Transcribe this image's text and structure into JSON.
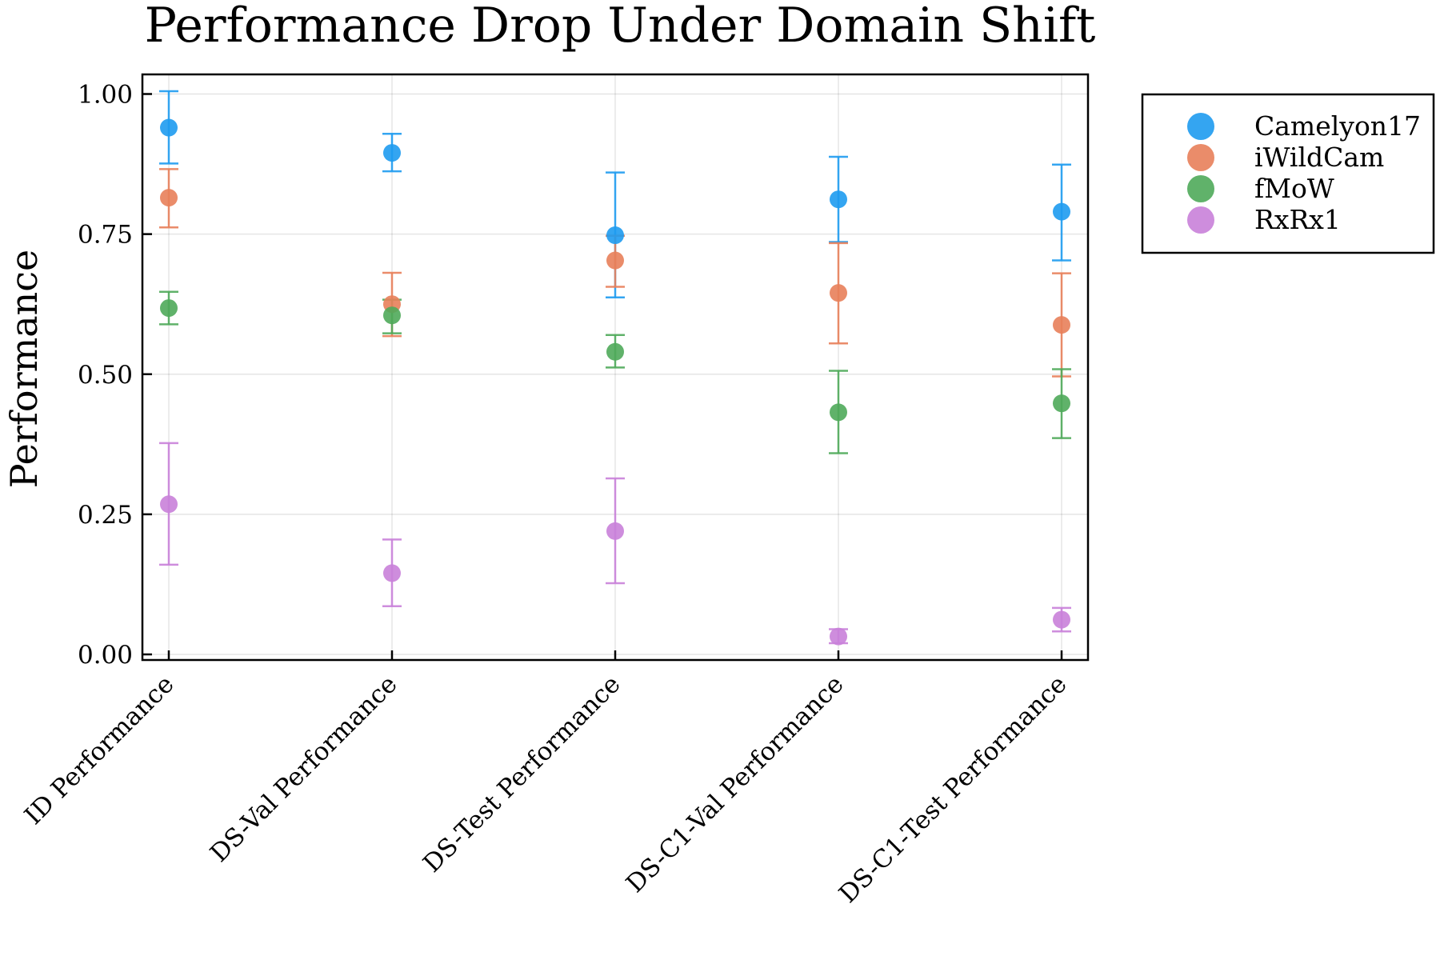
{
  "chart_data": {
    "type": "scatter",
    "title": "Performance Drop Under Domain Shift",
    "xlabel": "",
    "ylabel": "Performance",
    "categories": [
      "ID Performance",
      "DS-Val Performance",
      "DS-Test Performance",
      "DS-C1-Val Performance",
      "DS-C1-Test Performance"
    ],
    "ylim": [
      -0.01,
      1.035
    ],
    "yticks": [
      0.0,
      0.25,
      0.5,
      0.75,
      1.0
    ],
    "ytick_labels": [
      "0.00",
      "0.25",
      "0.50",
      "0.75",
      "1.00"
    ],
    "grid": true,
    "legend_position": "outside-right-top",
    "error_bars": true,
    "series": [
      {
        "name": "Camelyon17",
        "color": "#1E9BF0",
        "values": [
          0.94,
          0.895,
          0.748,
          0.812,
          0.79
        ],
        "err_low": [
          0.876,
          0.862,
          0.637,
          0.736,
          0.703
        ],
        "err_high": [
          1.005,
          0.929,
          0.86,
          0.888,
          0.874
        ]
      },
      {
        "name": "iWildCam",
        "color": "#E8805A",
        "values": [
          0.815,
          0.625,
          0.703,
          0.645,
          0.588
        ],
        "err_low": [
          0.762,
          0.568,
          0.656,
          0.555,
          0.496
        ],
        "err_high": [
          0.866,
          0.681,
          0.747,
          0.734,
          0.68
        ]
      },
      {
        "name": "fMoW",
        "color": "#4FAA5A",
        "values": [
          0.618,
          0.605,
          0.54,
          0.432,
          0.448
        ],
        "err_low": [
          0.589,
          0.573,
          0.512,
          0.359,
          0.386
        ],
        "err_high": [
          0.647,
          0.633,
          0.57,
          0.506,
          0.509
        ]
      },
      {
        "name": "RxRx1",
        "color": "#C981D9",
        "values": [
          0.268,
          0.145,
          0.22,
          0.032,
          0.062
        ],
        "err_low": [
          0.16,
          0.086,
          0.127,
          0.02,
          0.041
        ],
        "err_high": [
          0.377,
          0.205,
          0.314,
          0.045,
          0.083
        ]
      }
    ]
  }
}
